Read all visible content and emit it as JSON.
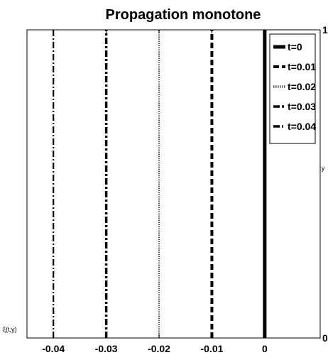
{
  "chart_data": {
    "type": "line",
    "title": "Propagation monotone",
    "xlabel": "ξ(t,y)",
    "ylabel": "y",
    "xlim": [
      -0.045,
      0.0105
    ],
    "ylim": [
      0,
      1
    ],
    "x_ticks": [
      {
        "value": -0.04,
        "label": "-0.04"
      },
      {
        "value": -0.03,
        "label": "-0.03"
      },
      {
        "value": -0.02,
        "label": "-0.02"
      },
      {
        "value": -0.01,
        "label": "-0.01"
      },
      {
        "value": 0,
        "label": "0"
      }
    ],
    "y_ticks": [
      {
        "value": 0,
        "label": "0"
      },
      {
        "value": 1,
        "label": "1"
      }
    ],
    "grid": false,
    "legend_position": "top-right",
    "series": [
      {
        "name": "t=0",
        "x": 0,
        "y": [
          0,
          1
        ],
        "style": "solid",
        "width": 5,
        "color": "#000000"
      },
      {
        "name": "t=0.01",
        "x": -0.01,
        "y": [
          0,
          1
        ],
        "style": "dashed",
        "width": 4,
        "color": "#000000"
      },
      {
        "name": "t=0.02",
        "x": -0.02,
        "y": [
          0,
          1
        ],
        "style": "dotted",
        "width": 2,
        "color": "#555555"
      },
      {
        "name": "t=0.03",
        "x": -0.03,
        "y": [
          0,
          1
        ],
        "style": "dashdot",
        "width": 3.5,
        "color": "#000000"
      },
      {
        "name": "t=0.04",
        "x": -0.04,
        "y": [
          0,
          1
        ],
        "style": "dashdot-thin",
        "width": 2.2,
        "color": "#000000"
      }
    ]
  }
}
